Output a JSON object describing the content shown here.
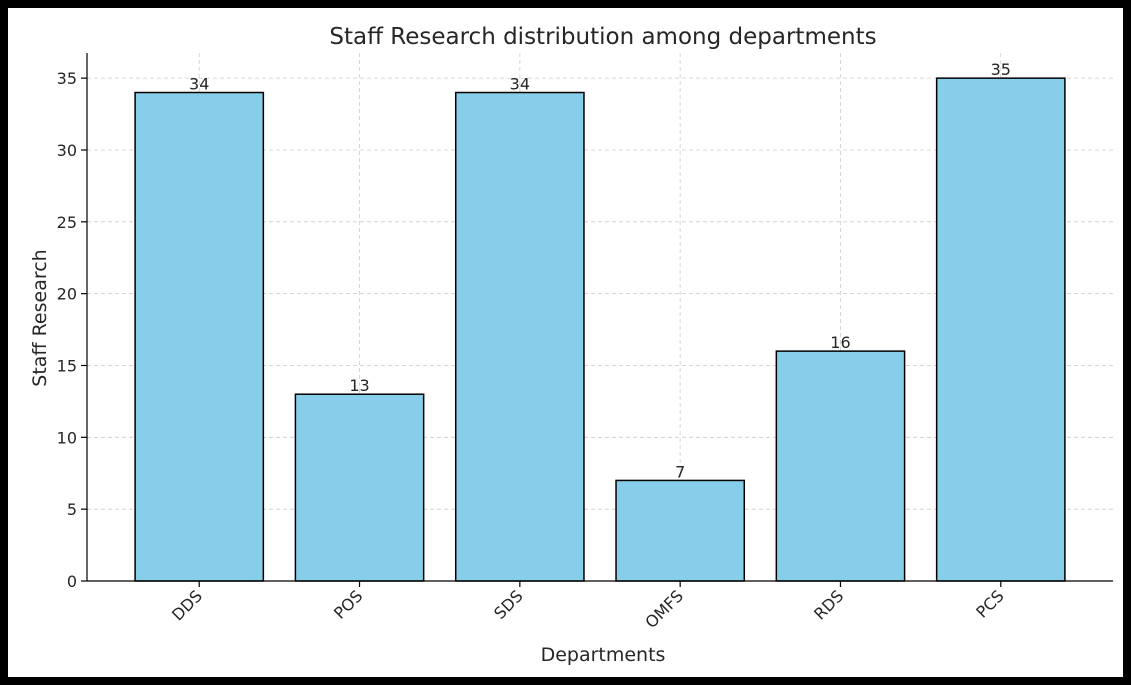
{
  "chart_data": {
    "type": "bar",
    "title": "Staff Research distribution among departments",
    "xlabel": "Departments",
    "ylabel": "Staff Research",
    "categories": [
      "DDS",
      "POS",
      "SDS",
      "OMFS",
      "RDS",
      "PCS"
    ],
    "values": [
      34,
      13,
      34,
      7,
      16,
      35
    ],
    "ylim": [
      0,
      36.75
    ],
    "yticks": [
      0,
      5,
      10,
      15,
      20,
      25,
      30,
      35
    ],
    "grid": true,
    "bar_color": "#87ceeb",
    "edge_color": "#000000"
  }
}
